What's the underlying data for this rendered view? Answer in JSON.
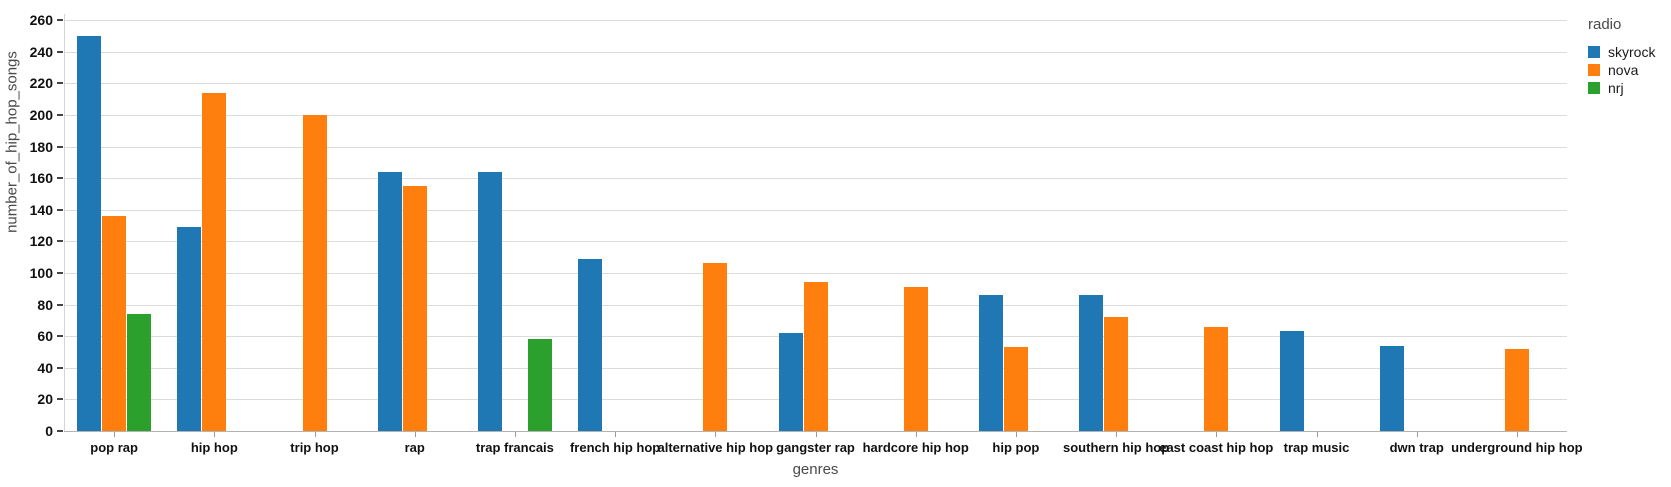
{
  "chart_data": {
    "type": "bar",
    "title": "",
    "xlabel": "genres",
    "ylabel": "number_of_hip_hop_songs",
    "ylim": [
      0,
      260
    ],
    "yticks": [
      0,
      20,
      40,
      60,
      80,
      100,
      120,
      140,
      160,
      180,
      200,
      220,
      240,
      260
    ],
    "grid": "horizontal-only",
    "legend_title": "radio",
    "legend_position": "top-right-outside",
    "categories": [
      "pop rap",
      "hip hop",
      "trip hop",
      "rap",
      "trap francais",
      "french hip hop",
      "alternative hip hop",
      "gangster rap",
      "hardcore hip hop",
      "hip pop",
      "southern hip hop",
      "east coast hip hop",
      "trap music",
      "dwn trap",
      "underground hip hop"
    ],
    "series": [
      {
        "name": "skyrock",
        "color": "#1f77b4",
        "values": [
          250,
          129,
          null,
          164,
          164,
          109,
          null,
          62,
          null,
          86,
          86,
          null,
          63,
          54,
          null
        ]
      },
      {
        "name": "nova",
        "color": "#ff7f0e",
        "values": [
          136,
          214,
          200,
          155,
          null,
          null,
          106,
          94,
          91,
          53,
          72,
          66,
          null,
          null,
          52
        ]
      },
      {
        "name": "nrj",
        "color": "#2ca02c",
        "values": [
          74,
          null,
          null,
          null,
          58,
          null,
          null,
          null,
          null,
          null,
          null,
          null,
          null,
          null,
          null
        ]
      }
    ]
  },
  "colors": {
    "background": "#ffffff",
    "gridline": "#dcdcdc",
    "x_axis_line": "#b3b3b3",
    "y_axis_line": "#d4d4d4",
    "tick_label": "#111111",
    "axis_title": "#4a4a4a",
    "legend_text": "#1a1a1a"
  }
}
